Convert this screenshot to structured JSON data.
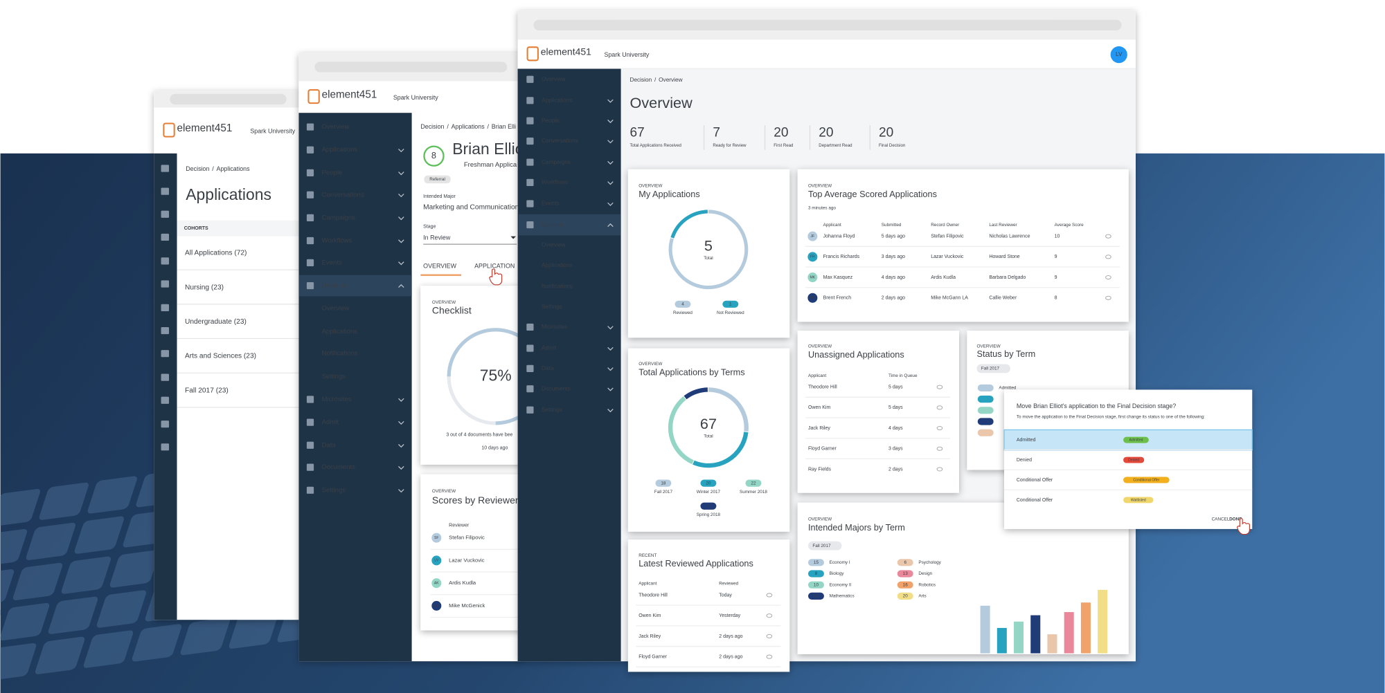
{
  "nav": [
    "Overview",
    "Applications",
    "People",
    "Conversations",
    "Campaigns",
    "Workflows",
    "Events",
    "Decision",
    "Overview",
    "Applications",
    "Notifications",
    "Settings",
    "Microsites",
    "Admit",
    "Data",
    "Documents",
    "Settings"
  ],
  "logo": "element451",
  "university": "Spark University",
  "breadcrumb_separator": "/",
  "window_back": {
    "breadcrumb": [
      "Decision",
      "Applications"
    ],
    "title": "Applications",
    "cohorts_label": "COHORTS",
    "cohorts": [
      "All Applications (72)",
      "Nursing (23)",
      "Undergraduate (23)",
      "Arts and Sciences (23)",
      "Fall 2017 (23)"
    ]
  },
  "window_middle": {
    "breadcrumb": [
      "Decision",
      "Applications",
      "Brian Elli"
    ],
    "score": "8",
    "name": "Brian Ellio",
    "subtitle": "Freshman Applica",
    "tag": "Referral",
    "major_label": "Intended Major",
    "major": "Marketing and Communication",
    "stage_label": "Stage",
    "stage": "In Review",
    "tabs": [
      "OVERVIEW",
      "APPLICATION"
    ],
    "checklist": {
      "eyebrow": "OVERVIEW",
      "title": "Checklist",
      "percent": 75,
      "percent_label": "75%",
      "note": "3 out of 4 documents have bee",
      "time": "10 days ago"
    },
    "reviewers": {
      "eyebrow": "OVERVIEW",
      "title": "Scores by Reviewers",
      "column": "Reviewer",
      "rows": [
        {
          "initials": "SF",
          "name": "Stefan Filipovic"
        },
        {
          "initials": "LV",
          "name": "Lazar Vuckovic"
        },
        {
          "initials": "AK",
          "name": "Ardis Kudla"
        },
        {
          "initials": "MM",
          "name": "Mike McGenick"
        }
      ]
    }
  },
  "window_front": {
    "avatar": "LV",
    "breadcrumb": [
      "Decision",
      "Overview"
    ],
    "title": "Overview",
    "stats": [
      {
        "value": "67",
        "label": "Total Applications Received"
      },
      {
        "value": "7",
        "label": "Ready for Review"
      },
      {
        "value": "20",
        "label": "First Read"
      },
      {
        "value": "20",
        "label": "Department Read"
      },
      {
        "value": "20",
        "label": "Final Decision"
      }
    ],
    "my_applications": {
      "eyebrow": "OVERVIEW",
      "title": "My Applications",
      "total": "5",
      "total_label": "Total",
      "segments": [
        {
          "name": "Reviewed",
          "value": 4,
          "color": "#b4cadd"
        },
        {
          "name": "Not Reviewed",
          "value": 1,
          "color": "#27a3bf"
        }
      ]
    },
    "top_scored": {
      "eyebrow": "OVERVIEW",
      "title": "Top Average Scored Applications",
      "updated": "3 minutes ago",
      "columns": [
        "Applicant",
        "Submitted",
        "Record Owner",
        "Last Reviewer",
        "Average Score"
      ],
      "rows": [
        {
          "initials": "JF",
          "cells": [
            "Johanna Floyd",
            "5 days ago",
            "Stefan Filipovic",
            "Nicholas Lawrence",
            "10"
          ]
        },
        {
          "initials": "FR",
          "cells": [
            "Francis Richards",
            "3 days ago",
            "Lazar Vuckovic",
            "Howard Stone",
            "9"
          ]
        },
        {
          "initials": "MK",
          "cells": [
            "Max Kasquez",
            "4 days ago",
            "Ardis Kudla",
            "Barbara Delgado",
            "9"
          ]
        },
        {
          "initials": "BF",
          "cells": [
            "Brent French",
            "2 days ago",
            "Mike McGann LA",
            "Callie Weber",
            "8"
          ]
        }
      ]
    },
    "terms": {
      "eyebrow": "OVERVIEW",
      "title": "Total Applications by Terms",
      "total": "67",
      "total_label": "Total",
      "segments": [
        {
          "name": "Fall 2017",
          "value": 18,
          "color": "#b4cadd"
        },
        {
          "name": "Winter 2017",
          "value": 20,
          "color": "#27a3bf"
        },
        {
          "name": "Summer 2018",
          "value": 22,
          "color": "#93d6c6"
        },
        {
          "name": "Spring 2018",
          "value": 7,
          "color": "#1f3b78"
        }
      ]
    },
    "unassigned": {
      "eyebrow": "OVERVIEW",
      "title": "Unassigned Applications",
      "columns": [
        "Applicant",
        "Time in Queue"
      ],
      "rows": [
        [
          "Theodore Hill",
          "5 days"
        ],
        [
          "Owen Kim",
          "5 days"
        ],
        [
          "Jack Riley",
          "4 days"
        ],
        [
          "Floyd Garner",
          "3 days"
        ],
        [
          "Ray Fields",
          "2 days"
        ]
      ]
    },
    "status_by_term": {
      "eyebrow": "OVERVIEW",
      "title": "Status by Term",
      "filter": "Fall 2017",
      "first_status": "Admitted"
    },
    "latest": {
      "eyebrow": "RECENT",
      "title": "Latest Reviewed Applications",
      "columns": [
        "Applicant",
        "Reviewed"
      ],
      "rows": [
        [
          "Theodore Hill",
          "Today"
        ],
        [
          "Owen Kim",
          "Yesterday"
        ],
        [
          "Jack Riley",
          "2 days ago"
        ],
        [
          "Floyd Garner",
          "2 days ago"
        ]
      ]
    },
    "majors": {
      "eyebrow": "OVERVIEW",
      "title": "Intended Majors by Term",
      "filter": "Fall 2017",
      "series": [
        {
          "name": "Economy I",
          "value": 15,
          "color": "#b4cadd"
        },
        {
          "name": "Biology",
          "value": 8,
          "color": "#27a3bf"
        },
        {
          "name": "Economy II",
          "value": 10,
          "color": "#93d6c6"
        },
        {
          "name": "Mathematics",
          "value": 12,
          "color": "#1f3b78"
        },
        {
          "name": "Psychology",
          "value": 6,
          "color": "#eac6ab"
        },
        {
          "name": "Design",
          "value": 13,
          "color": "#e8889a"
        },
        {
          "name": "Robotics",
          "value": 16,
          "color": "#f0a26a"
        },
        {
          "name": "Arts",
          "value": 20,
          "color": "#f2de86"
        }
      ]
    }
  },
  "dialog": {
    "title": "Move Brian Elliot's application to the Final Decision stage?",
    "text": "To move the application to the Final Decision stage, first change its status to one of the following:",
    "options": [
      {
        "label": "Admitted",
        "chip": "Admitted",
        "color": "#6cc04a"
      },
      {
        "label": "Denied",
        "chip": "Denied",
        "color": "#e5493a"
      },
      {
        "label": "Conditional Offer",
        "chip": "Conditional Offer",
        "color": "#f2b01e"
      },
      {
        "label": "Conditional Offer",
        "chip": "Waitlisted",
        "color": "#f0d66b"
      }
    ],
    "cancel": "CANCEL",
    "done": "DONE"
  }
}
